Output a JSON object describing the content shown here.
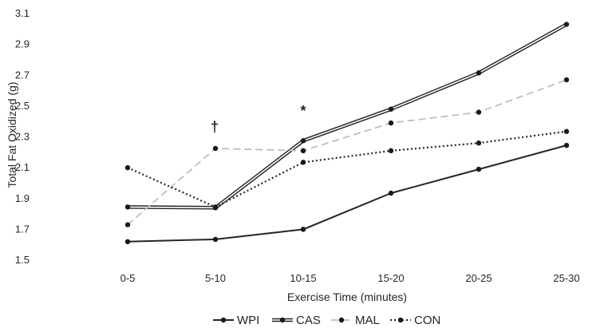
{
  "chart_data": {
    "type": "line",
    "title": "",
    "xlabel": "Exercise Time (minutes)",
    "ylabel": "Total Fat Oxidized (g)",
    "categories": [
      "0-5",
      "5-10",
      "10-15",
      "15-20",
      "20-25",
      "25-30"
    ],
    "ylim": [
      1.5,
      3.1
    ],
    "yticks": [
      "1.5",
      "1.7",
      "1.9",
      "2.1",
      "2.3",
      "2.5",
      "2.7",
      "2.9",
      "3.1"
    ],
    "grid": false,
    "legend_position": "bottom",
    "series": [
      {
        "name": "WPI",
        "values": [
          1.62,
          1.635,
          1.7,
          1.935,
          2.09,
          2.245
        ],
        "color": "#262626",
        "style": "solid"
      },
      {
        "name": "CAS",
        "values": [
          1.845,
          1.84,
          2.275,
          2.48,
          2.715,
          3.03
        ],
        "color": "#262626",
        "style": "double"
      },
      {
        "name": "MAL",
        "values": [
          1.73,
          2.225,
          2.21,
          2.39,
          2.46,
          2.67
        ],
        "color": "#bfbfbf",
        "style": "dashed"
      },
      {
        "name": "CON",
        "values": [
          2.1,
          1.845,
          2.135,
          2.21,
          2.26,
          2.335
        ],
        "color": "#262626",
        "style": "dotted"
      }
    ],
    "annotations": [
      {
        "text": "†",
        "category": "5-10"
      },
      {
        "text": "*",
        "category": "10-15"
      }
    ]
  }
}
